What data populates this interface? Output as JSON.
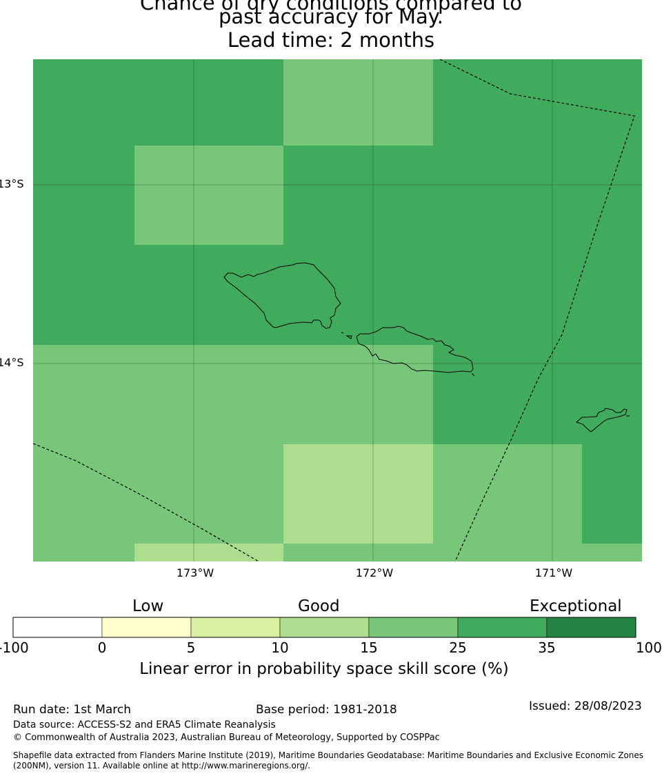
{
  "title": {
    "line1": "Chance of dry conditions compared to",
    "line2": "past accuracy for May.",
    "line3": "Lead time: 2 months"
  },
  "map": {
    "lat_labels": [
      "13°S",
      "14°S"
    ],
    "lon_labels": [
      "173°W",
      "172°W",
      "171°W"
    ],
    "colors": {
      "15-25": "#78c679",
      "25-35": "#41ab5d",
      "10-15": "#addd8e"
    }
  },
  "legend": {
    "categories": [
      "Low",
      "Good",
      "Exceptional"
    ],
    "ticks": [
      "-100",
      "0",
      "5",
      "10",
      "15",
      "25",
      "35",
      "100"
    ],
    "colors": [
      "#ffffff",
      "#ffffcc",
      "#d9f0a3",
      "#addd8e",
      "#78c679",
      "#41ab5d",
      "#238443"
    ],
    "title": "Linear error in probability space skill score (%)"
  },
  "footer": {
    "run_date": "Run date: 1st March",
    "base_period": "Base period: 1981-2018",
    "issued": "Issued: 28/08/2023",
    "data_source": "Data source: ACCESS-S2 and ERA5 Climate Reanalysis",
    "copyright": "© Commonwealth of Australia 2023, Australian Bureau of Meteorology, Supported by COSPPac",
    "shapefile_line1": "Shapefile data extracted from Flanders Marine Institute (2019), Maritime Boundaries Geodatabase: Maritime Boundaries and Exclusive Economic Zones",
    "shapefile_line2": "(200NM), version 11. Available online at http://www.marineregions.org/."
  }
}
